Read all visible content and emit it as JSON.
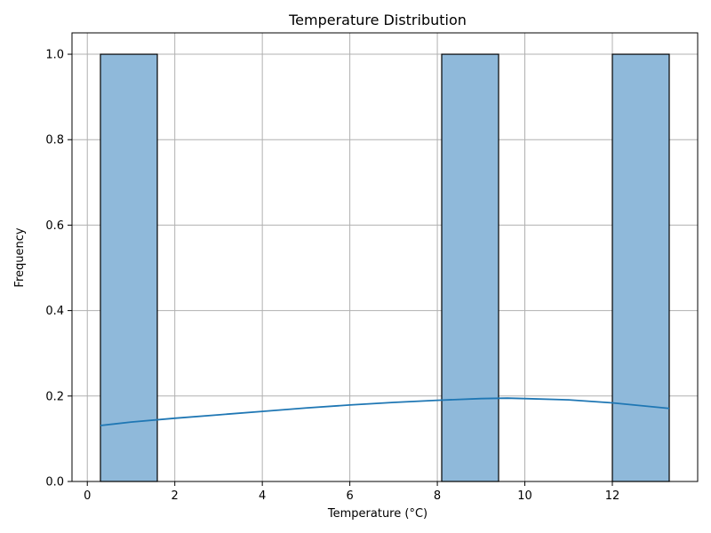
{
  "chart_data": {
    "type": "bar",
    "title": "Temperature Distribution",
    "xlabel": "Temperature (°C)",
    "ylabel": "Frequency",
    "xlim": [
      -0.35,
      13.95
    ],
    "ylim": [
      0,
      1.05
    ],
    "xticks": [
      0,
      2,
      4,
      6,
      8,
      10,
      12
    ],
    "yticks": [
      0.0,
      0.2,
      0.4,
      0.6,
      0.8,
      1.0
    ],
    "xtick_labels": [
      "0",
      "2",
      "4",
      "6",
      "8",
      "10",
      "12"
    ],
    "ytick_labels": [
      "0.0",
      "0.2",
      "0.4",
      "0.6",
      "0.8",
      "1.0"
    ],
    "grid": true,
    "bars": [
      {
        "x0": 0.3,
        "x1": 1.6,
        "value": 1.0
      },
      {
        "x0": 8.1,
        "x1": 9.4,
        "value": 1.0
      },
      {
        "x0": 12.0,
        "x1": 13.3,
        "value": 1.0
      }
    ],
    "kde": {
      "x": [
        0.3,
        1.0,
        2.0,
        3.0,
        4.0,
        5.0,
        6.0,
        7.0,
        8.0,
        9.0,
        9.6,
        10.0,
        11.0,
        12.0,
        13.3
      ],
      "y": [
        0.131,
        0.139,
        0.148,
        0.156,
        0.164,
        0.172,
        0.179,
        0.185,
        0.19,
        0.194,
        0.195,
        0.194,
        0.191,
        0.184,
        0.171
      ]
    },
    "colors": {
      "bar_fill": "#8fb9da",
      "bar_edge": "#000000",
      "kde_line": "#1f77b4",
      "grid": "#b0b0b0"
    }
  }
}
